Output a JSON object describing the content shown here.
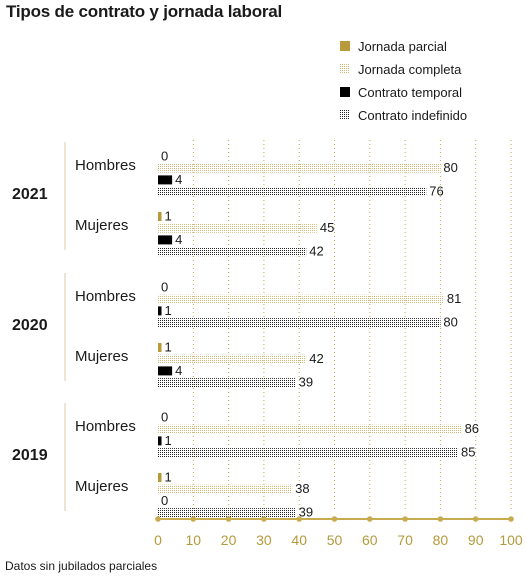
{
  "title": "Tipos de contrato y jornada laboral",
  "footnote": "Datos sin jubilados parciales",
  "colors": {
    "jornada_parcial": "#b89a3c",
    "jornada_completa": "#cfb978",
    "contrato_temporal": "#000000",
    "contrato_indefinido": "#222222",
    "axis": "#c8aa50",
    "divider": "#e2c9a8",
    "text": "#1a1a1a"
  },
  "chart_data": {
    "type": "bar",
    "orientation": "horizontal",
    "title": "Tipos de contrato y jornada laboral",
    "legend_position": "top-right",
    "series": [
      {
        "name": "Jornada parcial",
        "pattern": "solid-gold"
      },
      {
        "name": "Jornada completa",
        "pattern": "dotted-gold"
      },
      {
        "name": "Contrato temporal",
        "pattern": "solid-black"
      },
      {
        "name": "Contrato indefinido",
        "pattern": "dotted-black"
      }
    ],
    "groups": [
      {
        "year": "2021",
        "subgroups": [
          {
            "label": "Hombres",
            "values": [
              0,
              80,
              4,
              76
            ]
          },
          {
            "label": "Mujeres",
            "values": [
              1,
              45,
              4,
              42
            ]
          }
        ]
      },
      {
        "year": "2020",
        "subgroups": [
          {
            "label": "Hombres",
            "values": [
              0,
              81,
              1,
              80
            ]
          },
          {
            "label": "Mujeres",
            "values": [
              1,
              42,
              4,
              39
            ]
          }
        ]
      },
      {
        "year": "2019",
        "subgroups": [
          {
            "label": "Hombres",
            "values": [
              0,
              86,
              1,
              85
            ]
          },
          {
            "label": "Mujeres",
            "values": [
              1,
              38,
              0,
              39
            ]
          }
        ]
      }
    ],
    "xlim": [
      0,
      100
    ],
    "xticks": [
      0,
      10,
      20,
      30,
      40,
      50,
      60,
      70,
      80,
      90,
      100
    ],
    "grid": true
  }
}
